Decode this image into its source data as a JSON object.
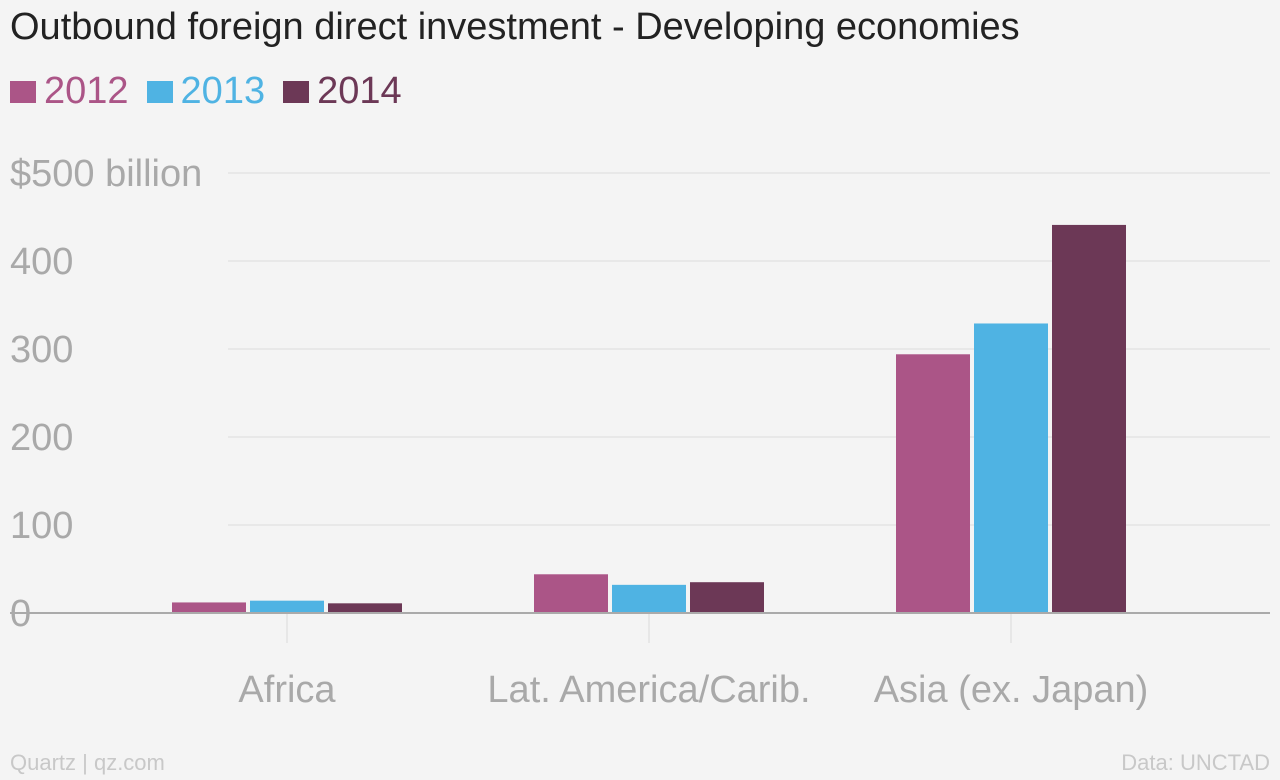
{
  "title": "Outbound foreign direct investment - Developing economies",
  "colors": {
    "background": "#f4f4f4",
    "grid": "#e3e3e3",
    "axis": "#aaaaaa",
    "tick_text": "#a9a9a9"
  },
  "footer": {
    "left": "Quartz | qz.com",
    "right": "Data: UNCTAD"
  },
  "chart_data": {
    "type": "bar",
    "title": "Outbound foreign direct investment - Developing economies",
    "categories": [
      "Africa",
      "Lat. America/Carib.",
      "Asia (ex. Japan)"
    ],
    "series": [
      {
        "name": "2012",
        "color": "#ab5587",
        "values": [
          12,
          44,
          294
        ]
      },
      {
        "name": "2013",
        "color": "#4fb3e3",
        "values": [
          14,
          32,
          329
        ]
      },
      {
        "name": "2014",
        "color": "#6c3856",
        "values": [
          11,
          35,
          441
        ]
      }
    ],
    "y_ticks": [
      {
        "value": 500,
        "label": "$500 billion"
      },
      {
        "value": 400,
        "label": "400"
      },
      {
        "value": 300,
        "label": "300"
      },
      {
        "value": 200,
        "label": "200"
      },
      {
        "value": 100,
        "label": "100"
      },
      {
        "value": 0,
        "label": "0"
      }
    ],
    "ylim": [
      0,
      500
    ],
    "grid": true,
    "legend_position": "top-left"
  }
}
